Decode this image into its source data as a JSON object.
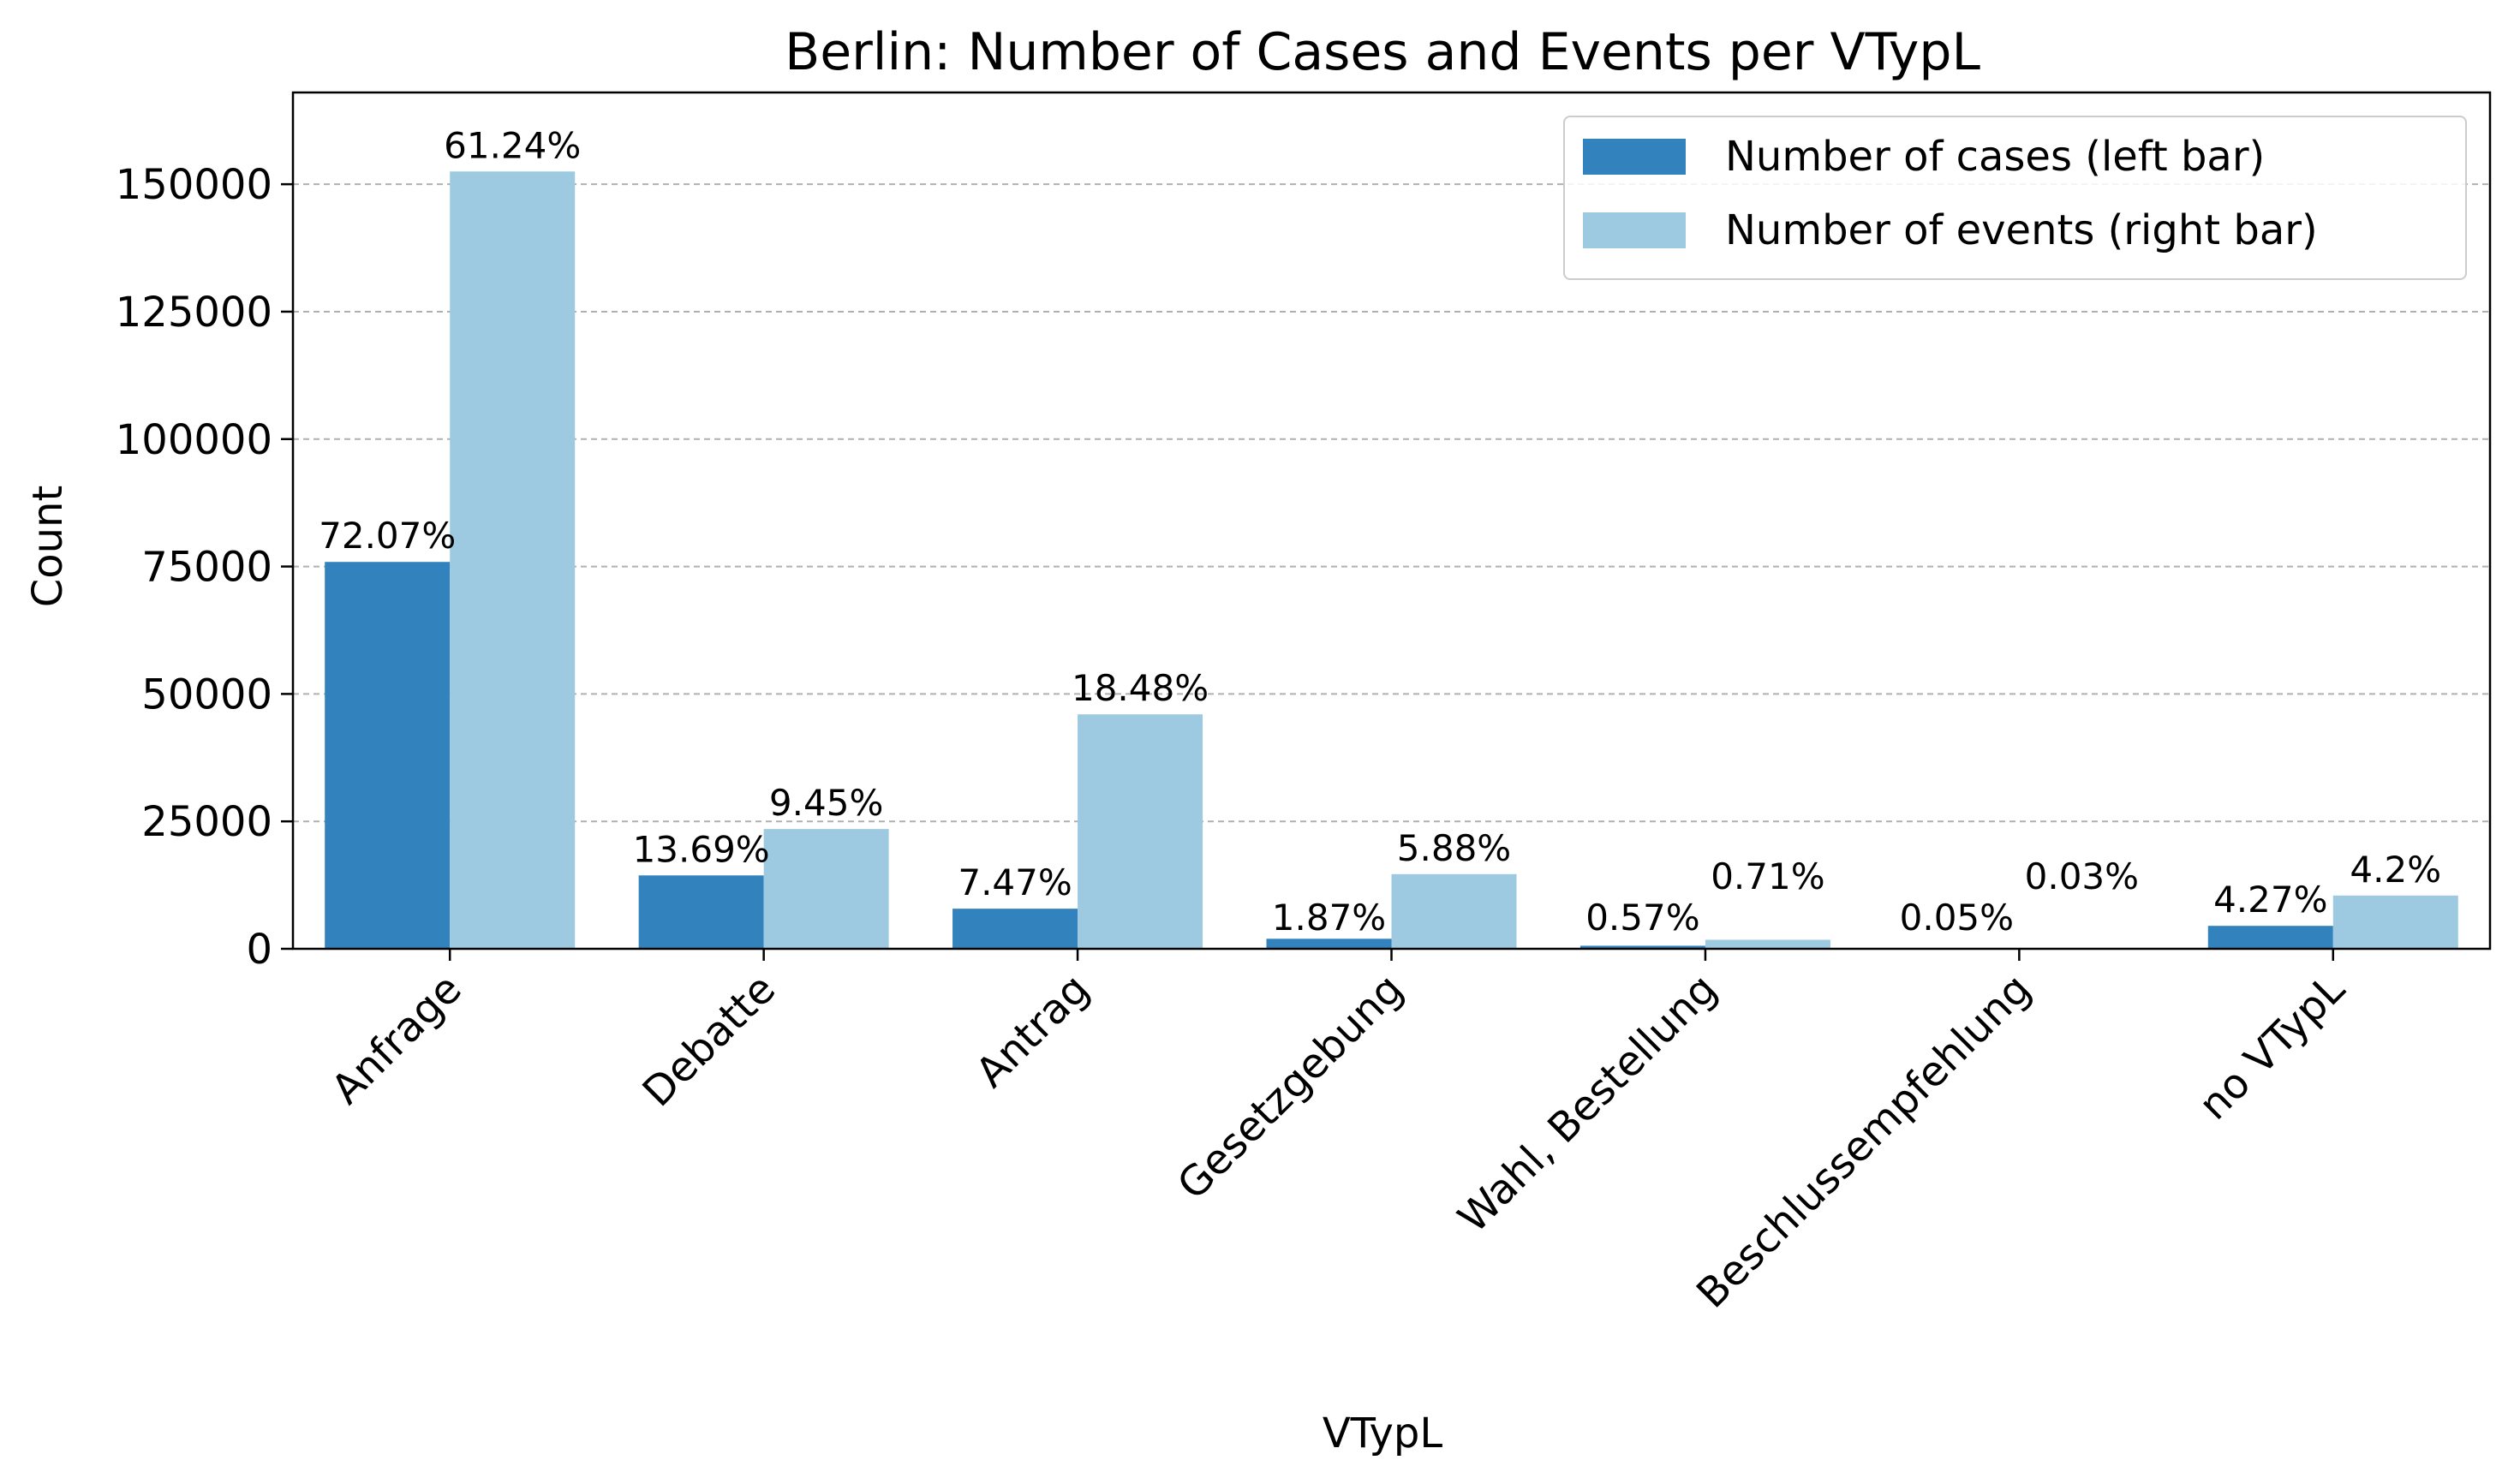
{
  "chart_data": {
    "type": "bar",
    "title": "Berlin: Number of Cases and Events per VTypL",
    "xlabel": "VTypL",
    "ylabel": "Count",
    "ylim": [
      0,
      168000
    ],
    "yticks": [
      0,
      25000,
      50000,
      75000,
      100000,
      125000,
      150000
    ],
    "grid": "y-dashed",
    "legend_position": "top-right",
    "categories": [
      "Anfrage",
      "Debatte",
      "Antrag",
      "Gesetzgebung",
      "Wahl, Bestellung",
      "Beschlussempfehlung",
      "no VTypL"
    ],
    "series": [
      {
        "name": "Number of cases (left bar)",
        "color": "#3182bd",
        "values": [
          75900,
          14400,
          7870,
          1970,
          600,
          53,
          4500
        ],
        "labels": [
          "72.07%",
          "13.69%",
          "7.47%",
          "1.87%",
          "0.57%",
          "0.05%",
          "4.27%"
        ]
      },
      {
        "name": "Number of events (right bar)",
        "color": "#9ecae1",
        "values": [
          152500,
          23500,
          46000,
          14650,
          1770,
          75,
          10450
        ],
        "labels": [
          "61.24%",
          "9.45%",
          "18.48%",
          "5.88%",
          "0.71%",
          "0.03%",
          "4.2%"
        ]
      }
    ]
  }
}
